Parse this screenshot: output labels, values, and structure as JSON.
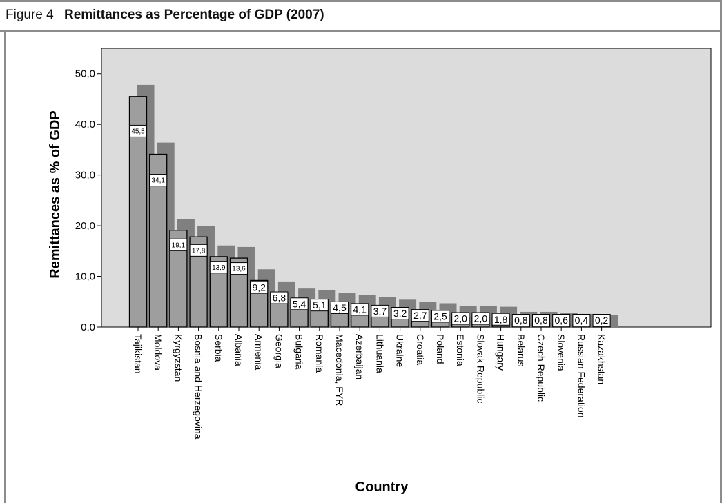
{
  "figure": {
    "label": "Figure 4",
    "title": "Remittances as Percentage of GDP (2007)"
  },
  "chart_data": {
    "type": "bar",
    "xlabel": "Country",
    "ylabel": "Remittances as % of GDP",
    "ylim": [
      0,
      55
    ],
    "yticks": [
      "0,0",
      "10,0",
      "20,0",
      "30,0",
      "40,0",
      "50,0"
    ],
    "ytick_values": [
      0,
      10,
      20,
      30,
      40,
      50
    ],
    "grid": false,
    "background_color": "#dcdcdc",
    "categories": [
      "Tajikistan",
      "Moldova",
      "Kyrgyzstan",
      "Bosnia and Herzegovina",
      "Serbia",
      "Albania",
      "Armenia",
      "Georgia",
      "Bulgaria",
      "Romania",
      "Macedonia, FYR",
      "Azerbaijan",
      "Lithuania",
      "Ukraine",
      "Croatia",
      "Poland",
      "Estonia",
      "Slovak Republic",
      "Hungary",
      "Belarus",
      "Czech Republic",
      "Slovenia",
      "Russian Federation",
      "Kazakhstan"
    ],
    "series": [
      {
        "values": [
          45.5,
          34.1,
          19.1,
          17.8,
          13.9,
          13.6,
          9.2,
          6.8,
          5.4,
          5.1,
          4.5,
          4.1,
          3.7,
          3.2,
          2.7,
          2.5,
          2.0,
          2.0,
          1.8,
          0.8,
          0.8,
          0.6,
          0.4,
          0.2
        ],
        "data_labels": [
          "45,5",
          "34,1",
          "19,1",
          "17,8",
          "13,9",
          "13,6",
          "9,2",
          "6,8",
          "5,4",
          "5,1",
          "4,5",
          "4,1",
          "3,7",
          "3,2",
          "2,7",
          "2,5",
          "2,0",
          "2,0",
          "1,8",
          "0,8",
          "0,8",
          "0,6",
          "0,4",
          "0,2"
        ],
        "color": "#9e9e9e"
      },
      {
        "values": [
          47.8,
          36.4,
          21.3,
          20.0,
          16.1,
          15.8,
          11.4,
          9.0,
          7.6,
          7.3,
          6.7,
          6.3,
          5.9,
          5.4,
          4.9,
          4.7,
          4.2,
          4.2,
          4.0,
          3.0,
          3.0,
          2.8,
          2.6,
          2.4
        ],
        "color": "#808080"
      }
    ],
    "bar_border_color": "#000000",
    "label_box_color": "#ffffff",
    "axis_color": "#000000"
  }
}
